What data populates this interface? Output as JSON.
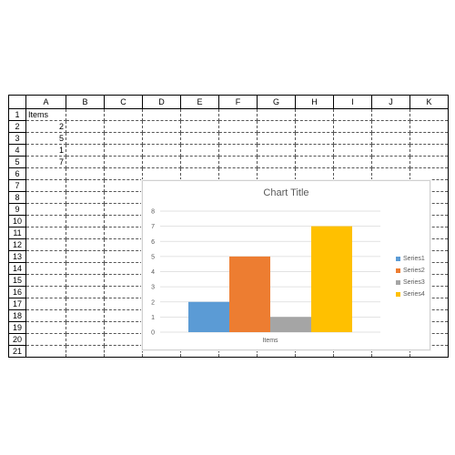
{
  "sheet": {
    "columns": [
      "A",
      "B",
      "C",
      "D",
      "E",
      "F",
      "G",
      "H",
      "I",
      "J",
      "K"
    ],
    "rows": [
      "1",
      "2",
      "3",
      "4",
      "5",
      "6",
      "7",
      "8",
      "9",
      "10",
      "11",
      "12",
      "13",
      "14",
      "15",
      "16",
      "17",
      "18",
      "19",
      "20",
      "21"
    ],
    "cells": {
      "A1": "Items",
      "A2": "2",
      "A3": "5",
      "A4": "1",
      "A5": "7"
    }
  },
  "chart_data": {
    "type": "bar",
    "title": "Chart Title",
    "categories": [
      "Items"
    ],
    "series": [
      {
        "name": "Series1",
        "values": [
          2
        ],
        "color": "#5b9bd5"
      },
      {
        "name": "Series2",
        "values": [
          5
        ],
        "color": "#ed7d31"
      },
      {
        "name": "Series3",
        "values": [
          1
        ],
        "color": "#a5a5a5"
      },
      {
        "name": "Series4",
        "values": [
          7
        ],
        "color": "#ffc000"
      }
    ],
    "ylim": [
      0,
      8
    ],
    "yticks": [
      "0",
      "1",
      "2",
      "3",
      "4",
      "5",
      "6",
      "7",
      "8"
    ],
    "grid": true,
    "legend": "right"
  }
}
